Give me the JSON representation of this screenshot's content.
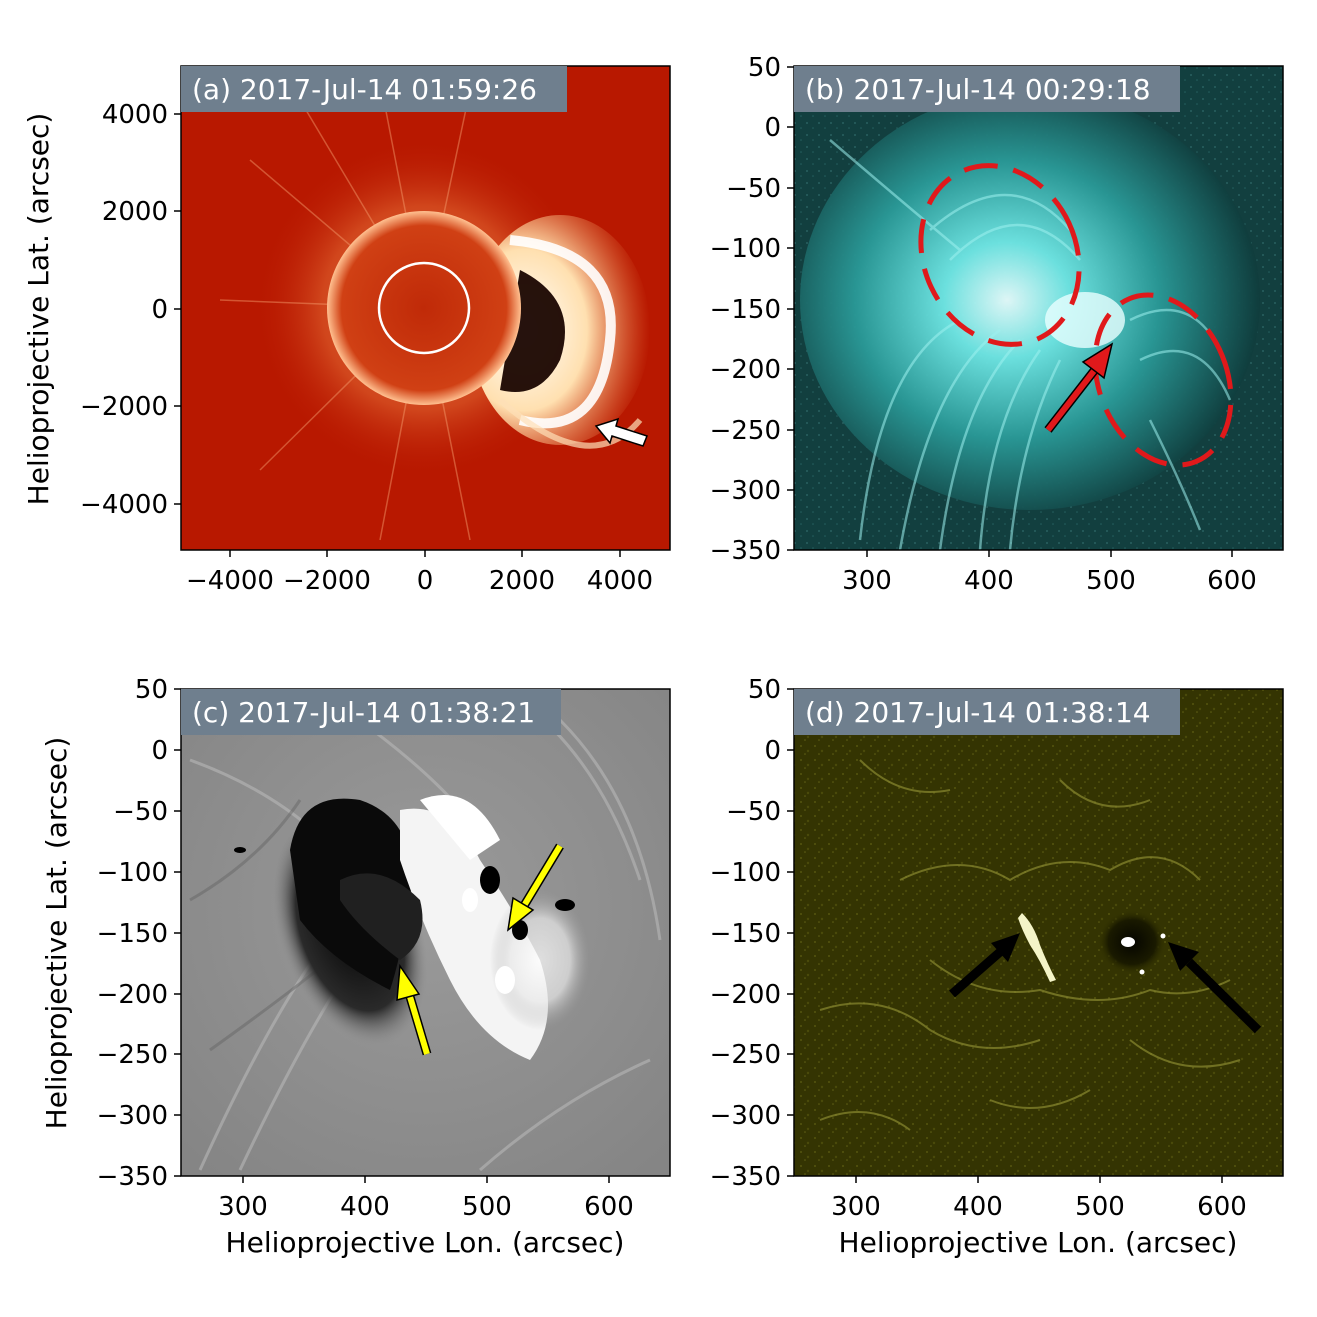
{
  "panels": [
    {
      "id": "a",
      "title": "(a) 2017-Jul-14 01:59:26",
      "xticks": [
        "−4000",
        "−2000",
        "0",
        "2000",
        "4000"
      ],
      "yticks": [
        "4000",
        "2000",
        "0",
        "−2000",
        "−4000"
      ],
      "ylabel": "Helioprojective Lat. (arcsec)",
      "xlabel": ""
    },
    {
      "id": "b",
      "title": "(b) 2017-Jul-14 00:29:18",
      "xticks": [
        "300",
        "400",
        "500",
        "600"
      ],
      "yticks": [
        "50",
        "0",
        "−50",
        "−100",
        "−150",
        "−200",
        "−250",
        "−300",
        "−350"
      ],
      "ylabel": "",
      "xlabel": ""
    },
    {
      "id": "c",
      "title": "(c) 2017-Jul-14 01:38:21",
      "xticks": [
        "300",
        "400",
        "500",
        "600"
      ],
      "yticks": [
        "50",
        "0",
        "−50",
        "−100",
        "−150",
        "−200",
        "−250",
        "−300",
        "−350"
      ],
      "ylabel": "Helioprojective Lat. (arcsec)",
      "xlabel": "Helioprojective Lon. (arcsec)"
    },
    {
      "id": "d",
      "title": "(d) 2017-Jul-14 01:38:14",
      "xticks": [
        "300",
        "400",
        "500",
        "600"
      ],
      "yticks": [
        "50",
        "0",
        "−50",
        "−100",
        "−150",
        "−200",
        "−250",
        "−300",
        "−350"
      ],
      "ylabel": "",
      "xlabel": "Helioprojective Lon. (arcsec)"
    }
  ],
  "colors": {
    "panel_a_bg": "#b81800",
    "panel_b_bg": "#0f3c3c",
    "panel_c_bg": "#8a8a8a",
    "panel_d_bg": "#333300",
    "title_box": "#6f7f8e",
    "red_annotation": "#e0191b",
    "yellow_arrow": "#ffff00",
    "black_arrow": "#000000",
    "white_arrow": "#ffffff"
  }
}
